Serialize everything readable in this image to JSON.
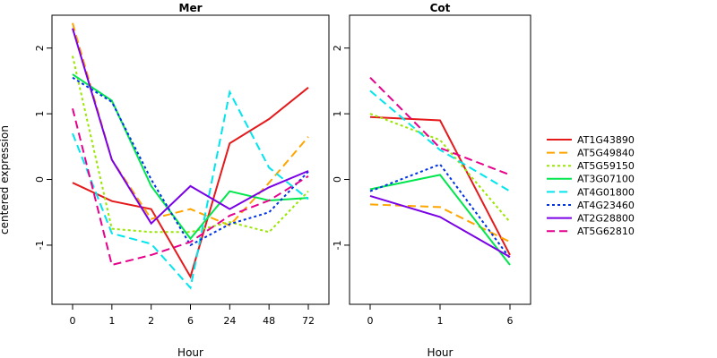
{
  "chart_data": {
    "type": "line",
    "ylabel": "centered expression",
    "y_ticks": [
      "-1",
      "0",
      "1",
      "2"
    ],
    "ylim": [
      -1.9,
      2.5
    ],
    "legend_position": "right",
    "series_styles": [
      {
        "name": "AT1G43890",
        "color": "#E41A1C",
        "dash": "solid"
      },
      {
        "name": "AT5G49840",
        "color": "#FFA500",
        "dash": "dashed"
      },
      {
        "name": "AT5G59150",
        "color": "#99E600",
        "dash": "dotted"
      },
      {
        "name": "AT3G07100",
        "color": "#00E64D",
        "dash": "solid"
      },
      {
        "name": "AT4G01800",
        "color": "#00E5EE",
        "dash": "dashed"
      },
      {
        "name": "AT4G23460",
        "color": "#0033E6",
        "dash": "dotted"
      },
      {
        "name": "AT2G28800",
        "color": "#7A00E6",
        "dash": "solid"
      },
      {
        "name": "AT5G62810",
        "color": "#E6008C",
        "dash": "dashed"
      }
    ],
    "panels": [
      {
        "title": "Mer",
        "xlabel": "Hour",
        "categories": [
          "0",
          "1",
          "2",
          "6",
          "24",
          "48",
          "72"
        ],
        "series": [
          {
            "name": "AT1G43890",
            "values": [
              -0.05,
              -0.33,
              -0.45,
              -1.48,
              0.55,
              0.92,
              1.4
            ]
          },
          {
            "name": "AT5G49840",
            "values": [
              2.38,
              0.3,
              -0.6,
              -0.45,
              -0.7,
              -0.05,
              0.65
            ]
          },
          {
            "name": "AT5G59150",
            "values": [
              1.88,
              -0.75,
              -0.8,
              -0.8,
              -0.65,
              -0.8,
              -0.18
            ]
          },
          {
            "name": "AT3G07100",
            "values": [
              1.6,
              1.2,
              -0.1,
              -0.9,
              -0.18,
              -0.32,
              -0.28
            ]
          },
          {
            "name": "AT4G01800",
            "values": [
              0.7,
              -0.82,
              -0.98,
              -1.65,
              1.33,
              0.18,
              -0.3
            ]
          },
          {
            "name": "AT4G23460",
            "values": [
              1.55,
              1.18,
              0.0,
              -1.0,
              -0.68,
              -0.5,
              0.12
            ]
          },
          {
            "name": "AT2G28800",
            "values": [
              2.3,
              0.3,
              -0.67,
              -0.1,
              -0.45,
              -0.12,
              0.13
            ]
          },
          {
            "name": "AT5G62810",
            "values": [
              1.08,
              -1.3,
              -1.15,
              -0.95,
              -0.55,
              -0.32,
              0.05
            ]
          }
        ]
      },
      {
        "title": "Cot",
        "xlabel": "Hour",
        "categories": [
          "0",
          "1",
          "6"
        ],
        "series": [
          {
            "name": "AT1G43890",
            "values": [
              0.95,
              0.9,
              -1.15
            ]
          },
          {
            "name": "AT5G49840",
            "values": [
              -0.38,
              -0.42,
              -0.95
            ]
          },
          {
            "name": "AT5G59150",
            "values": [
              1.0,
              0.6,
              -0.65
            ]
          },
          {
            "name": "AT3G07100",
            "values": [
              -0.15,
              0.07,
              -1.3
            ]
          },
          {
            "name": "AT4G01800",
            "values": [
              1.35,
              0.45,
              -0.18
            ]
          },
          {
            "name": "AT4G23460",
            "values": [
              -0.18,
              0.23,
              -1.2
            ]
          },
          {
            "name": "AT2G28800",
            "values": [
              -0.25,
              -0.57,
              -1.18
            ]
          },
          {
            "name": "AT5G62810",
            "values": [
              1.55,
              0.48,
              0.07
            ]
          }
        ]
      }
    ]
  }
}
